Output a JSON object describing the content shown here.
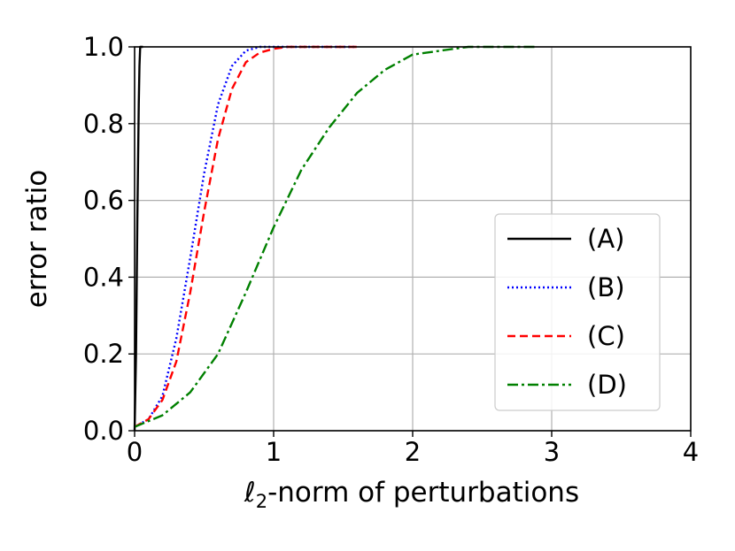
{
  "chart_data": {
    "type": "line",
    "xlabel_var": "ℓ",
    "xlabel_sub": "2",
    "xlabel_rest": "-norm of perturbations",
    "ylabel": "error ratio",
    "xlim": [
      0,
      4
    ],
    "ylim": [
      0,
      1
    ],
    "xticks": [
      "0",
      "1",
      "2",
      "3",
      "4"
    ],
    "yticks": [
      "0.0",
      "0.2",
      "0.4",
      "0.6",
      "0.8",
      "1.0"
    ],
    "grid": true,
    "legend_position": "center-right",
    "series": [
      {
        "name": "(A)",
        "color": "#000000",
        "dash": "solid",
        "x": [
          0,
          0.01,
          0.02,
          0.03,
          0.035,
          0.04,
          0.05,
          0.06
        ],
        "y": [
          0,
          0.2,
          0.55,
          0.85,
          0.95,
          1.0,
          1.0,
          1.0
        ]
      },
      {
        "name": "(B)",
        "color": "#0000ff",
        "dash": "dotted",
        "x": [
          0,
          0.1,
          0.2,
          0.3,
          0.4,
          0.5,
          0.6,
          0.7,
          0.8,
          0.9,
          1.0,
          1.2,
          1.6
        ],
        "y": [
          0.01,
          0.03,
          0.09,
          0.24,
          0.45,
          0.67,
          0.85,
          0.95,
          0.99,
          1.0,
          1.0,
          1.0,
          1.0
        ]
      },
      {
        "name": "(C)",
        "color": "#ff0000",
        "dash": "dashed",
        "x": [
          0,
          0.1,
          0.2,
          0.3,
          0.4,
          0.5,
          0.6,
          0.7,
          0.8,
          0.9,
          1.0,
          1.1,
          1.2,
          1.6
        ],
        "y": [
          0.01,
          0.03,
          0.08,
          0.18,
          0.36,
          0.57,
          0.76,
          0.89,
          0.96,
          0.985,
          0.995,
          1.0,
          1.0,
          1.0
        ]
      },
      {
        "name": "(D)",
        "color": "#008000",
        "dash": "dashdot",
        "x": [
          0,
          0.2,
          0.4,
          0.6,
          0.8,
          1.0,
          1.2,
          1.4,
          1.6,
          1.8,
          2.0,
          2.2,
          2.4,
          2.6,
          2.9
        ],
        "y": [
          0.01,
          0.04,
          0.1,
          0.2,
          0.36,
          0.53,
          0.68,
          0.79,
          0.88,
          0.94,
          0.98,
          0.99,
          1.0,
          1.0,
          1.0
        ]
      }
    ]
  }
}
